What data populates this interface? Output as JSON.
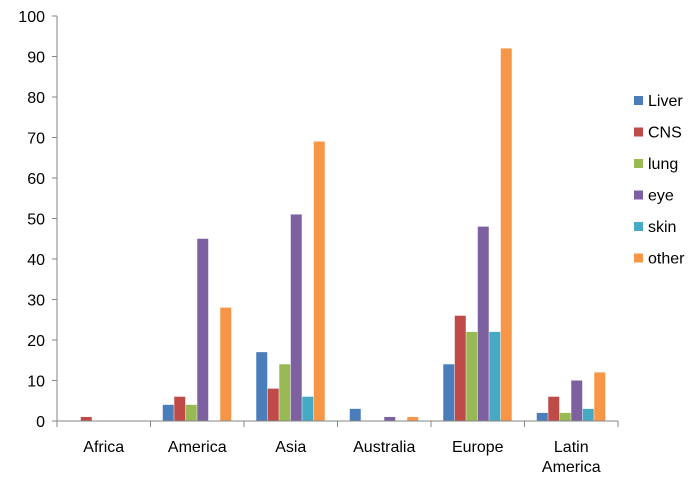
{
  "chart_data": {
    "type": "bar",
    "title": "",
    "xlabel": "",
    "ylabel": "",
    "ylim": [
      0,
      100
    ],
    "yticks": [
      0,
      10,
      20,
      30,
      40,
      50,
      60,
      70,
      80,
      90,
      100
    ],
    "grid": false,
    "legend_position": "right",
    "categories": [
      [
        "Africa"
      ],
      [
        "America"
      ],
      [
        "Asia"
      ],
      [
        "Australia"
      ],
      [
        "Europe"
      ],
      [
        "Latin",
        "America"
      ]
    ],
    "series": [
      {
        "name": "Liver",
        "color": "#4a7ebb",
        "values": [
          0,
          4,
          17,
          3,
          14,
          2
        ]
      },
      {
        "name": "CNS",
        "color": "#be4b48",
        "values": [
          1,
          6,
          8,
          0,
          26,
          6
        ]
      },
      {
        "name": "lung",
        "color": "#98b954",
        "values": [
          0,
          4,
          14,
          0,
          22,
          2
        ]
      },
      {
        "name": "eye",
        "color": "#7d60a0",
        "values": [
          0,
          45,
          51,
          1,
          48,
          10
        ]
      },
      {
        "name": "skin",
        "color": "#46aac5",
        "values": [
          0,
          0,
          6,
          0,
          22,
          3
        ]
      },
      {
        "name": "other",
        "color": "#f79646",
        "values": [
          0,
          28,
          69,
          1,
          92,
          12
        ]
      }
    ]
  }
}
